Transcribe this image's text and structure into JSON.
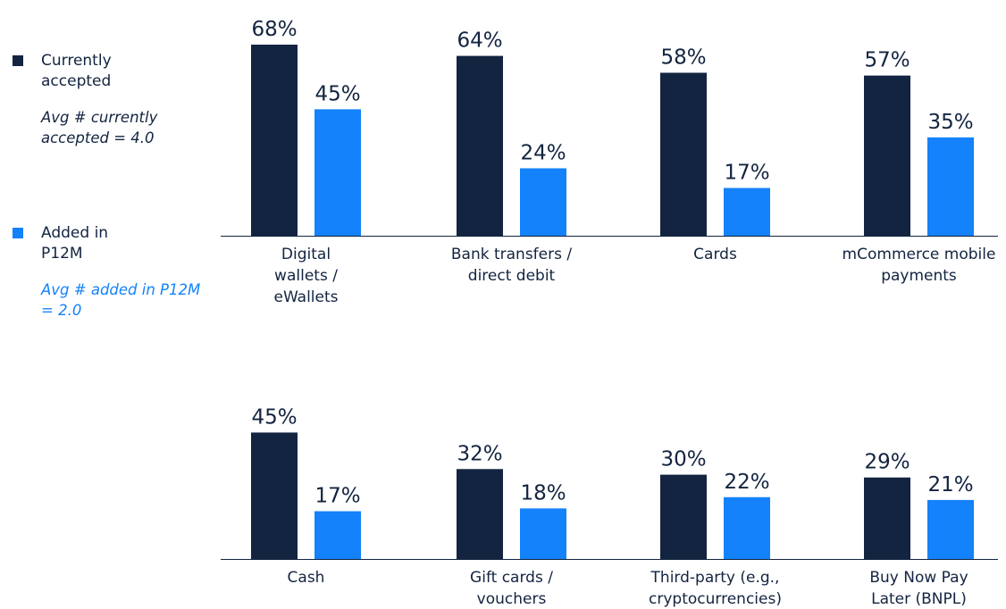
{
  "colors": {
    "current": "#132440",
    "added": "#1482FA",
    "axis": "#132440",
    "text": "#132440"
  },
  "legend": {
    "current_label": "Currently accepted",
    "current_note": "Avg # currently accepted = 4.0",
    "added_label": "Added in P12M",
    "added_note": "Avg # added in P12M = 2.0"
  },
  "chart_data": [
    {
      "type": "bar",
      "categories": [
        [
          "Digital",
          "wallets /",
          "eWallets"
        ],
        [
          "Bank transfers /",
          "direct debit"
        ],
        [
          "Cards"
        ],
        [
          "mCommerce mobile",
          "payments"
        ]
      ],
      "series": [
        {
          "name": "Currently accepted",
          "values": [
            68,
            64,
            58,
            57
          ],
          "labels": [
            "68%",
            "64%",
            "58%",
            "57%"
          ]
        },
        {
          "name": "Added in P12M",
          "values": [
            45,
            24,
            17,
            35
          ],
          "labels": [
            "45%",
            "24%",
            "17%",
            "35%"
          ]
        }
      ],
      "ylim": [
        0,
        75
      ],
      "grid": false
    },
    {
      "type": "bar",
      "categories": [
        [
          "Cash"
        ],
        [
          "Gift cards /",
          "vouchers"
        ],
        [
          "Third-party (e.g.,",
          "cryptocurrencies)"
        ],
        [
          "Buy Now Pay",
          "Later (BNPL)"
        ]
      ],
      "series": [
        {
          "name": "Currently accepted",
          "values": [
            45,
            32,
            30,
            29
          ],
          "labels": [
            "45%",
            "32%",
            "30%",
            "29%"
          ]
        },
        {
          "name": "Added in P12M",
          "values": [
            17,
            18,
            22,
            21
          ],
          "labels": [
            "17%",
            "18%",
            "22%",
            "21%"
          ]
        }
      ],
      "ylim": [
        0,
        75
      ],
      "grid": false
    }
  ]
}
